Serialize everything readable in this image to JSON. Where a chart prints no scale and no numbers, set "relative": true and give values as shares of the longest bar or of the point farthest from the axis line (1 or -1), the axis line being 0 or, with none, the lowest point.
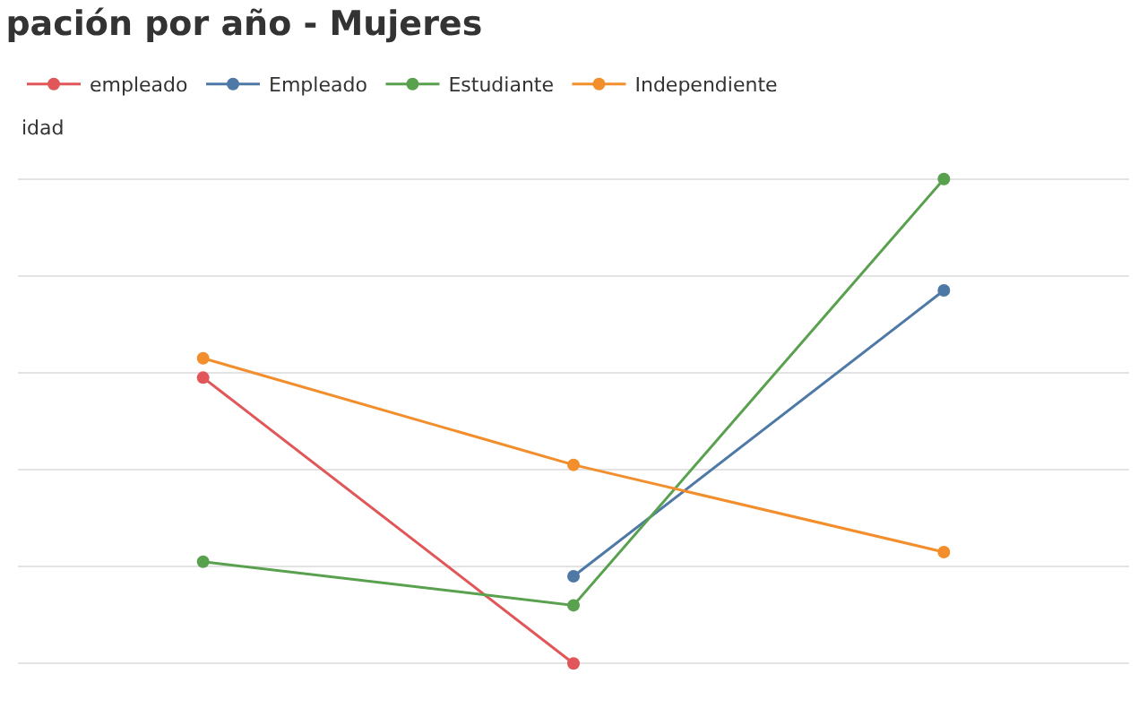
{
  "chart_data": {
    "type": "line",
    "title": "pación por año - Mujeres",
    "ylabel": "idad",
    "relative": true,
    "categories": [
      null,
      null,
      null
    ],
    "grid": "y",
    "legend": "top left",
    "marker": "circle",
    "series": [
      {
        "name": "empleado",
        "color": "#e15759",
        "values": [
          0.59,
          0,
          null
        ]
      },
      {
        "name": "Empleado",
        "color": "#4e79a7",
        "values": [
          null,
          0.18,
          0.77
        ]
      },
      {
        "name": "Estudiante",
        "color": "#59a14f",
        "values": [
          0.21,
          0.12,
          1
        ]
      },
      {
        "name": "Independiente",
        "color": "#f28e2b",
        "values": [
          0.63,
          0.41,
          0.23
        ]
      }
    ]
  }
}
